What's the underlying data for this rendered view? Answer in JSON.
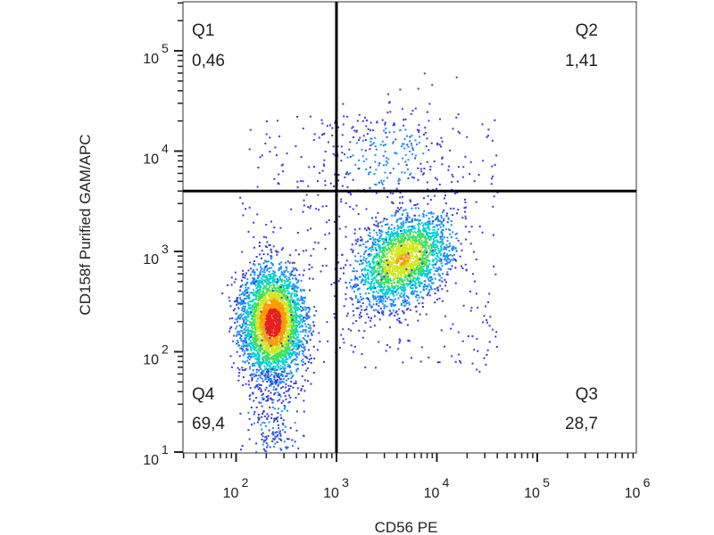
{
  "chart_data": {
    "type": "scatter",
    "subtype": "flow-cytometry density dot plot",
    "xlabel": "CD56 PE",
    "ylabel": "CD158f Purified GAM/APC",
    "x_scale": "log",
    "y_scale": "log",
    "x_ticks": [
      {
        "base": "10",
        "exp": "2",
        "value": 100
      },
      {
        "base": "10",
        "exp": "3",
        "value": 1000
      },
      {
        "base": "10",
        "exp": "4",
        "value": 10000
      },
      {
        "base": "10",
        "exp": "5",
        "value": 100000
      },
      {
        "base": "10",
        "exp": "6",
        "value": 1000000
      }
    ],
    "y_ticks": [
      {
        "base": "10",
        "exp": "1",
        "value": 10
      },
      {
        "base": "10",
        "exp": "2",
        "value": 100
      },
      {
        "base": "10",
        "exp": "3",
        "value": 1000
      },
      {
        "base": "10",
        "exp": "4",
        "value": 10000
      },
      {
        "base": "10",
        "exp": "5",
        "value": 100000
      }
    ],
    "gates": {
      "x": 1000,
      "y": 4000
    },
    "quadrants": [
      {
        "name": "Q1",
        "value": "0,46",
        "position": "top-left"
      },
      {
        "name": "Q2",
        "value": "1,41",
        "position": "top-right"
      },
      {
        "name": "Q3",
        "value": "28,7",
        "position": "bottom-right"
      },
      {
        "name": "Q4",
        "value": "69,4",
        "position": "bottom-left"
      }
    ],
    "populations": [
      {
        "x_center": 230,
        "y_center": 200,
        "weight": 0.69
      },
      {
        "x_center": 4500,
        "y_center": 850,
        "weight": 0.29
      },
      {
        "x_center": 3000,
        "y_center": 9000,
        "weight": 0.02
      }
    ],
    "density_colors": [
      "#3a3ad6",
      "#1a8cff",
      "#00d0d0",
      "#40e060",
      "#d0e820",
      "#ff9a00",
      "#e81e1e"
    ],
    "grid": false,
    "legend": "none"
  }
}
